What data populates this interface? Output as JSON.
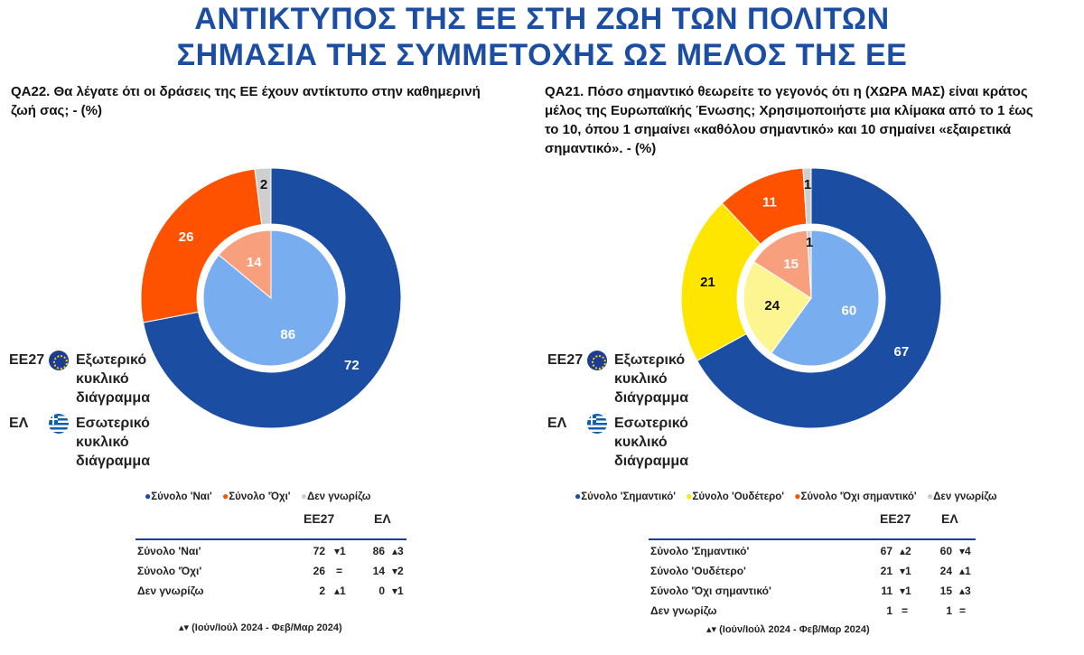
{
  "header": {
    "title_line1": "ΑΝΤΙΚΤΥΠΟΣ ΤΗΣ ΕΕ ΣΤΗ ΖΩΗ ΤΩΝ ΠΟΛΙΤΩΝ",
    "title_line2": "ΣΗΜΑΣΙΑ ΤΗΣ ΣΥΜΜΕΤΟΧΗΣ ΩΣ ΜΕΛΟΣ ΤΗΣ ΕΕ"
  },
  "colors": {
    "title": "#1b4ea3",
    "dark_blue": "#1b4ea3",
    "light_blue": "#78aef0",
    "orange": "#ff5200",
    "light_orange": "#f8a07e",
    "yellow": "#ffe600",
    "light_yellow": "#fdf592",
    "grey": "#cfcfcf"
  },
  "left": {
    "question": "QA22. Θα λέγατε ότι οι δράσεις της ΕΕ έχουν αντίκτυπο στην καθημερινή ζωή σας; - (%)",
    "legend_eu_code": "ΕΕ27",
    "legend_eu_text": "Εξωτερικό κυκλικό διάγραμμα",
    "legend_gr_code": "ΕΛ",
    "legend_gr_text": "Εσωτερικό κυκλικό διάγραμμα",
    "series_legend": [
      "Σύνολο 'Ναι'",
      "Σύνολο 'Όχι'",
      "Δεν γνωρίζω"
    ],
    "table_col1": "ΕΕ27",
    "table_col2": "ΕΛ",
    "rows": [
      {
        "label": "Σύνολο 'Ναι'",
        "eu": "72",
        "eu_ch": "▾1",
        "gr": "86",
        "gr_ch": "▴3"
      },
      {
        "label": "Σύνολο 'Όχι'",
        "eu": "26",
        "eu_ch": "=",
        "gr": "14",
        "gr_ch": "▾2"
      },
      {
        "label": "Δεν γνωρίζω",
        "eu": "2",
        "eu_ch": "▴1",
        "gr": "0",
        "gr_ch": "▾1"
      }
    ],
    "footnote": "▴▾ (Ιούν/Ιούλ 2024 - Φεβ/Μαρ 2024)"
  },
  "right": {
    "question": "QA21. Πόσο σημαντικό θεωρείτε το γεγονός ότι η (ΧΩΡΑ ΜΑΣ) είναι κράτος μέλος της Ευρωπαϊκής Ένωσης; Χρησιμοποιήστε μια κλίμακα από το 1 έως το 10, όπου 1 σημαίνει «καθόλου σημαντικό» και 10 σημαίνει «εξαιρετικά σημαντικό». - (%)",
    "legend_eu_code": "ΕΕ27",
    "legend_eu_text": "Εξωτερικό κυκλικό διάγραμμα",
    "legend_gr_code": "ΕΛ",
    "legend_gr_text": "Εσωτερικό κυκλικό διάγραμμα",
    "series_legend": [
      "Σύνολο 'Σημαντικό'",
      "Σύνολο 'Ουδέτερο'",
      "Σύνολο 'Όχι σημαντικό'",
      "Δεν γνωρίζω"
    ],
    "table_col1": "ΕΕ27",
    "table_col2": "ΕΛ",
    "rows": [
      {
        "label": "Σύνολο 'Σημαντικό'",
        "eu": "67",
        "eu_ch": "▴2",
        "gr": "60",
        "gr_ch": "▾4"
      },
      {
        "label": "Σύνολο 'Ουδέτερο'",
        "eu": "21",
        "eu_ch": "▾1",
        "gr": "24",
        "gr_ch": "▴1"
      },
      {
        "label": "Σύνολο 'Όχι σημαντικό'",
        "eu": "11",
        "eu_ch": "▾1",
        "gr": "15",
        "gr_ch": "▴3"
      },
      {
        "label": "Δεν γνωρίζω",
        "eu": "1",
        "eu_ch": "=",
        "gr": "1",
        "gr_ch": "="
      }
    ],
    "footnote": "▴▾ (Ιούν/Ιούλ 2024 - Φεβ/Μαρ 2024)"
  },
  "chart_data": [
    {
      "type": "pie",
      "title": "QA22. Θα λέγατε ότι οι δράσεις της ΕΕ έχουν αντίκτυπο στην καθημερινή ζωή σας; - (%)",
      "categories": [
        "Σύνολο 'Ναι'",
        "Σύνολο 'Όχι'",
        "Δεν γνωρίζω"
      ],
      "series": [
        {
          "name": "ΕΕ27",
          "values": [
            72,
            26,
            2
          ],
          "colors": [
            "#1b4ea3",
            "#ff5200",
            "#cfcfcf"
          ],
          "labels": [
            "72",
            "26",
            "2"
          ]
        },
        {
          "name": "ΕΛ",
          "values": [
            86,
            14,
            0
          ],
          "colors": [
            "#78aef0",
            "#f8a07e",
            "#cfcfcf"
          ],
          "labels": [
            "86",
            "14",
            ""
          ]
        }
      ]
    },
    {
      "type": "pie",
      "title": "QA21. Πόσο σημαντικό θεωρείτε το γεγονός ότι η (ΧΩΡΑ ΜΑΣ) είναι κράτος μέλος της Ευρωπαϊκής Ένωσης; - (%)",
      "categories": [
        "Σύνολο 'Σημαντικό'",
        "Σύνολο 'Ουδέτερο'",
        "Σύνολο 'Όχι σημαντικό'",
        "Δεν γνωρίζω"
      ],
      "series": [
        {
          "name": "ΕΕ27",
          "values": [
            67,
            21,
            11,
            1
          ],
          "colors": [
            "#1b4ea3",
            "#ffe600",
            "#ff5200",
            "#cfcfcf"
          ],
          "labels": [
            "67",
            "21",
            "11",
            "1"
          ]
        },
        {
          "name": "ΕΛ",
          "values": [
            60,
            24,
            15,
            1
          ],
          "colors": [
            "#78aef0",
            "#fdf592",
            "#f8a07e",
            "#cfcfcf"
          ],
          "labels": [
            "60",
            "24",
            "15",
            "1"
          ]
        }
      ]
    }
  ]
}
